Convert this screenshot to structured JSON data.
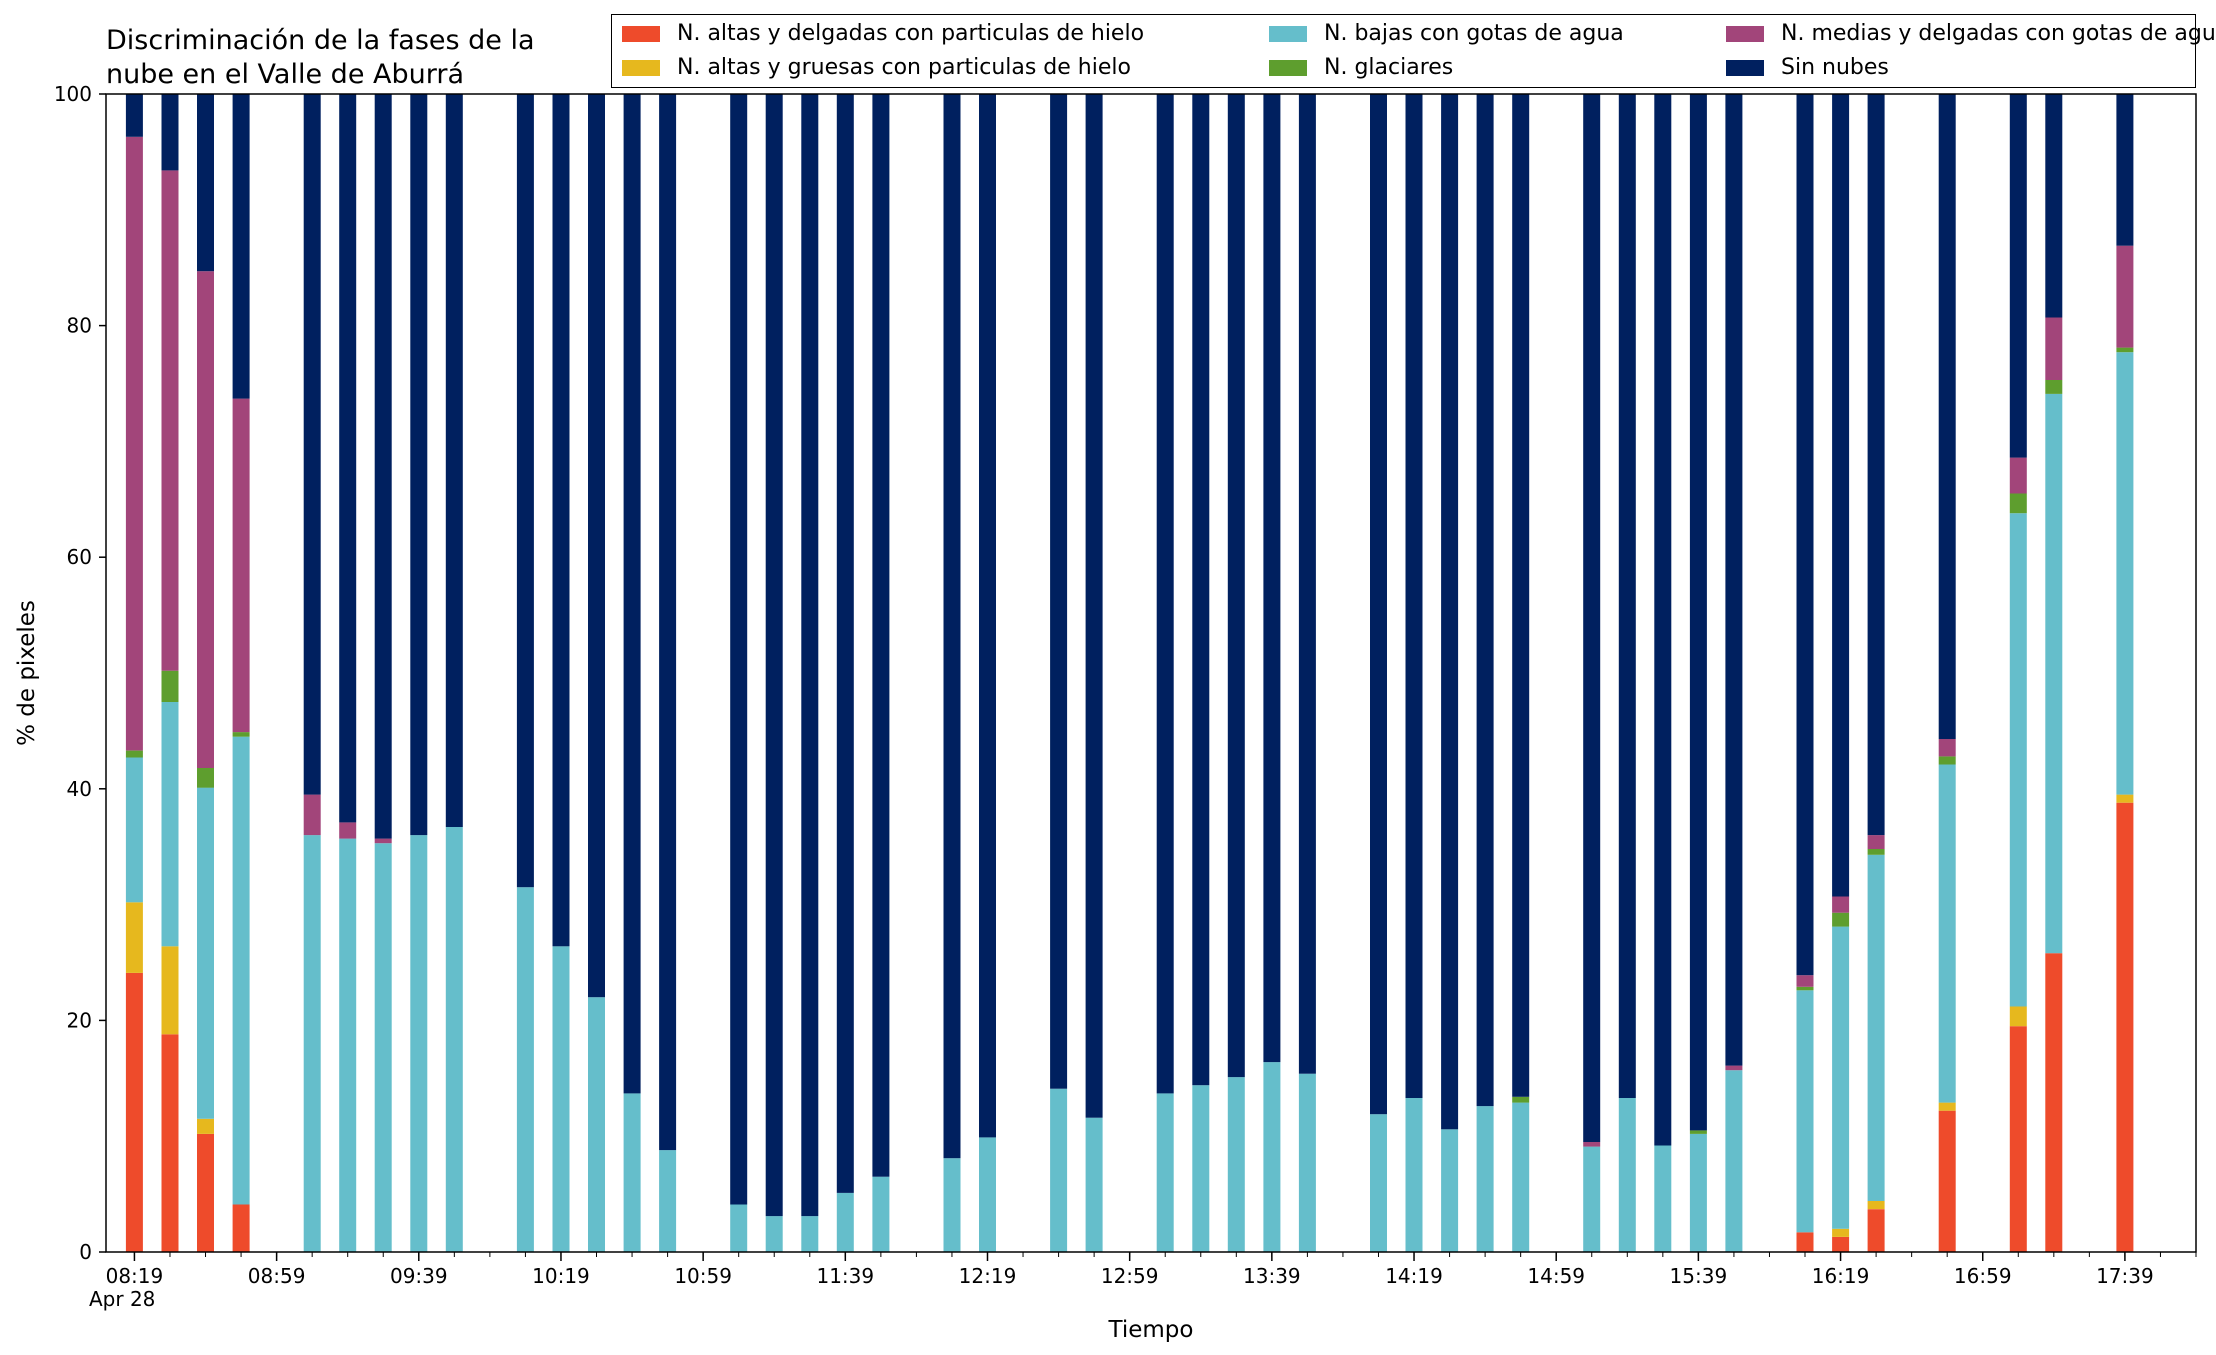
{
  "chart_data": {
    "type": "bar",
    "stacked": true,
    "title": "Discriminación de la fases de la\nnube en el Valle de Aburrá",
    "xlabel": "Tiempo",
    "ylabel": "% de pixeles",
    "ylim": [
      0,
      100
    ],
    "yticks": [
      0,
      20,
      40,
      60,
      80,
      100
    ],
    "xlim": [
      "08:11",
      "17:59"
    ],
    "date_label": "Apr 28",
    "xtick_labels": [
      "08:19",
      "08:59",
      "09:39",
      "10:19",
      "10:59",
      "11:39",
      "12:19",
      "12:59",
      "13:39",
      "14:19",
      "14:59",
      "15:39",
      "16:19",
      "16:59",
      "17:39"
    ],
    "minor_ticks_every_min": 10,
    "legend_position": "top-right",
    "grid": false,
    "x": [
      "08:19",
      "08:29",
      "08:39",
      "08:49",
      "09:09",
      "09:19",
      "09:29",
      "09:39",
      "09:49",
      "10:09",
      "10:19",
      "10:29",
      "10:39",
      "10:49",
      "11:09",
      "11:19",
      "11:29",
      "11:39",
      "11:49",
      "12:09",
      "12:19",
      "12:39",
      "12:49",
      "13:09",
      "13:19",
      "13:29",
      "13:39",
      "13:49",
      "14:09",
      "14:19",
      "14:29",
      "14:39",
      "14:49",
      "15:09",
      "15:19",
      "15:29",
      "15:39",
      "15:49",
      "16:09",
      "16:19",
      "16:29",
      "16:49",
      "17:09",
      "17:19",
      "17:39"
    ],
    "series": [
      {
        "name": "N. altas y delgadas con particulas de hielo",
        "color": "#EE4B2B",
        "values": [
          24.1,
          18.8,
          10.2,
          4.1,
          0,
          0,
          0,
          0,
          0,
          0,
          0,
          0,
          0,
          0,
          0,
          0,
          0,
          0,
          0,
          0,
          0,
          0,
          0,
          0,
          0,
          0,
          0,
          0,
          0,
          0,
          0,
          0,
          0,
          0,
          0,
          0,
          0,
          0,
          1.7,
          1.3,
          3.7,
          12.2,
          19.5,
          25.8,
          38.8
        ]
      },
      {
        "name": "N. altas y gruesas con particulas de hielo",
        "color": "#E6B81E",
        "values": [
          6.1,
          7.6,
          1.3,
          0,
          0,
          0,
          0,
          0,
          0,
          0,
          0,
          0,
          0,
          0,
          0,
          0,
          0,
          0,
          0,
          0,
          0,
          0,
          0,
          0,
          0,
          0,
          0,
          0,
          0,
          0,
          0,
          0,
          0,
          0,
          0,
          0,
          0,
          0,
          0,
          0.7,
          0.7,
          0.7,
          1.7,
          0,
          0.7
        ]
      },
      {
        "name": "N. bajas con gotas de agua",
        "color": "#65BECB",
        "values": [
          12.5,
          21.1,
          28.6,
          40.4,
          36,
          35.7,
          35.3,
          36,
          36.7,
          31.5,
          26.4,
          22,
          13.7,
          8.8,
          4.1,
          3.1,
          3.1,
          5.1,
          6.5,
          8.1,
          9.9,
          14.1,
          11.6,
          13.7,
          14.4,
          15.1,
          16.4,
          15.4,
          11.9,
          13.3,
          10.6,
          12.6,
          12.9,
          9.1,
          13.3,
          9.2,
          10.2,
          15.7,
          20.9,
          26.1,
          29.9,
          29.2,
          42.6,
          48.3,
          38.2
        ]
      },
      {
        "name": "N. glaciares",
        "color": "#5E9E2E",
        "values": [
          0.6,
          2.7,
          1.7,
          0.4,
          0,
          0,
          0,
          0,
          0,
          0,
          0,
          0,
          0,
          0,
          0,
          0,
          0,
          0,
          0,
          0,
          0,
          0,
          0,
          0,
          0,
          0,
          0,
          0,
          0,
          0,
          0,
          0,
          0.5,
          0,
          0,
          0,
          0.3,
          0,
          0.3,
          1.2,
          0.5,
          0.7,
          1.7,
          1.2,
          0.4
        ]
      },
      {
        "name": "N. medias y delgadas con gotas de agua",
        "color": "#A2457A",
        "values": [
          53,
          43.2,
          42.9,
          28.8,
          3.5,
          1.4,
          0.4,
          0,
          0,
          0,
          0,
          0,
          0,
          0,
          0,
          0,
          0,
          0,
          0,
          0,
          0,
          0,
          0,
          0,
          0,
          0,
          0,
          0,
          0,
          0,
          0,
          0,
          0,
          0.4,
          0,
          0,
          0,
          0.4,
          1,
          1.4,
          1.2,
          1.5,
          3.1,
          5.4,
          8.8
        ]
      },
      {
        "name": "Sin nubes",
        "color": "#00205F",
        "values": [
          3.7,
          6.6,
          15.3,
          26.3,
          60.5,
          62.9,
          64.3,
          64,
          63.3,
          68.5,
          73.6,
          78,
          86.3,
          91.2,
          95.9,
          96.9,
          96.9,
          94.9,
          93.5,
          91.9,
          90.1,
          85.9,
          88.4,
          86.3,
          85.6,
          84.9,
          83.6,
          84.6,
          88.1,
          86.7,
          89.4,
          87.4,
          86.6,
          90.5,
          86.7,
          90.8,
          89.5,
          83.9,
          76.1,
          69.3,
          64,
          55.7,
          31.4,
          19.3,
          13.1
        ]
      }
    ]
  }
}
